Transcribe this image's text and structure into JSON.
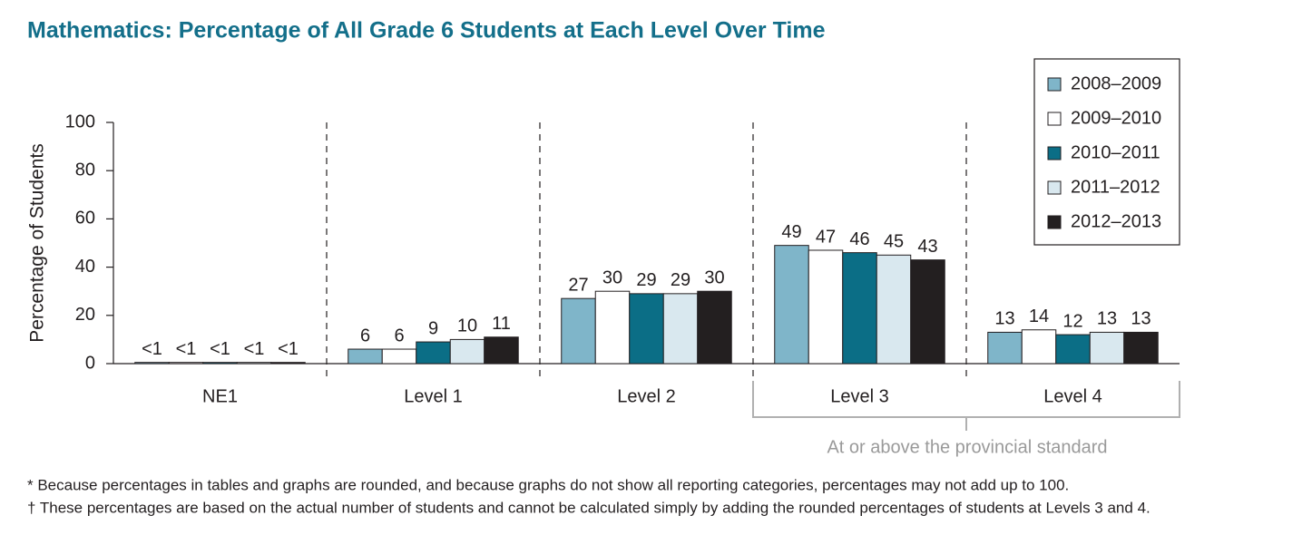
{
  "chart_data": {
    "type": "bar",
    "title": "Mathematics: Percentage of All Grade 6 Students at Each Level Over Time",
    "y_label": "Percentage of Students",
    "categories": [
      "NE1",
      "Level 1",
      "Level 2",
      "Level 3",
      "Level 4"
    ],
    "series": [
      {
        "name": "2008–2009",
        "color": "#7fb5c9",
        "values": [
          0.5,
          6,
          27,
          49,
          13
        ],
        "value_labels": [
          "<1",
          "6",
          "27",
          "49",
          "13"
        ]
      },
      {
        "name": "2009–2010",
        "color": "#ffffff",
        "values": [
          0.5,
          6,
          30,
          47,
          14
        ],
        "value_labels": [
          "<1",
          "6",
          "30",
          "47",
          "14"
        ]
      },
      {
        "name": "2010–2011",
        "color": "#0b6e86",
        "values": [
          0.5,
          9,
          29,
          46,
          12
        ],
        "value_labels": [
          "<1",
          "9",
          "29",
          "46",
          "12"
        ]
      },
      {
        "name": "2011–2012",
        "color": "#d9e8ef",
        "values": [
          0.5,
          10,
          29,
          45,
          13
        ],
        "value_labels": [
          "<1",
          "10",
          "29",
          "45",
          "13"
        ]
      },
      {
        "name": "2012–2013",
        "color": "#231f20",
        "values": [
          0.5,
          11,
          30,
          43,
          13
        ],
        "value_labels": [
          "<1",
          "11",
          "30",
          "43",
          "13"
        ]
      }
    ],
    "ylim": [
      0,
      100
    ],
    "yticks": [
      0,
      20,
      40,
      60,
      80,
      100
    ],
    "legend": "top-right",
    "annotation": "At or above the provincial standard",
    "notes": [
      "* Because percentages in tables and graphs are rounded, and because graphs do not show all reporting categories, percentages may not add up to 100.",
      "† These percentages are based on the actual number of students and cannot be calculated simply by adding the rounded percentages of students at Levels 3 and 4."
    ]
  }
}
